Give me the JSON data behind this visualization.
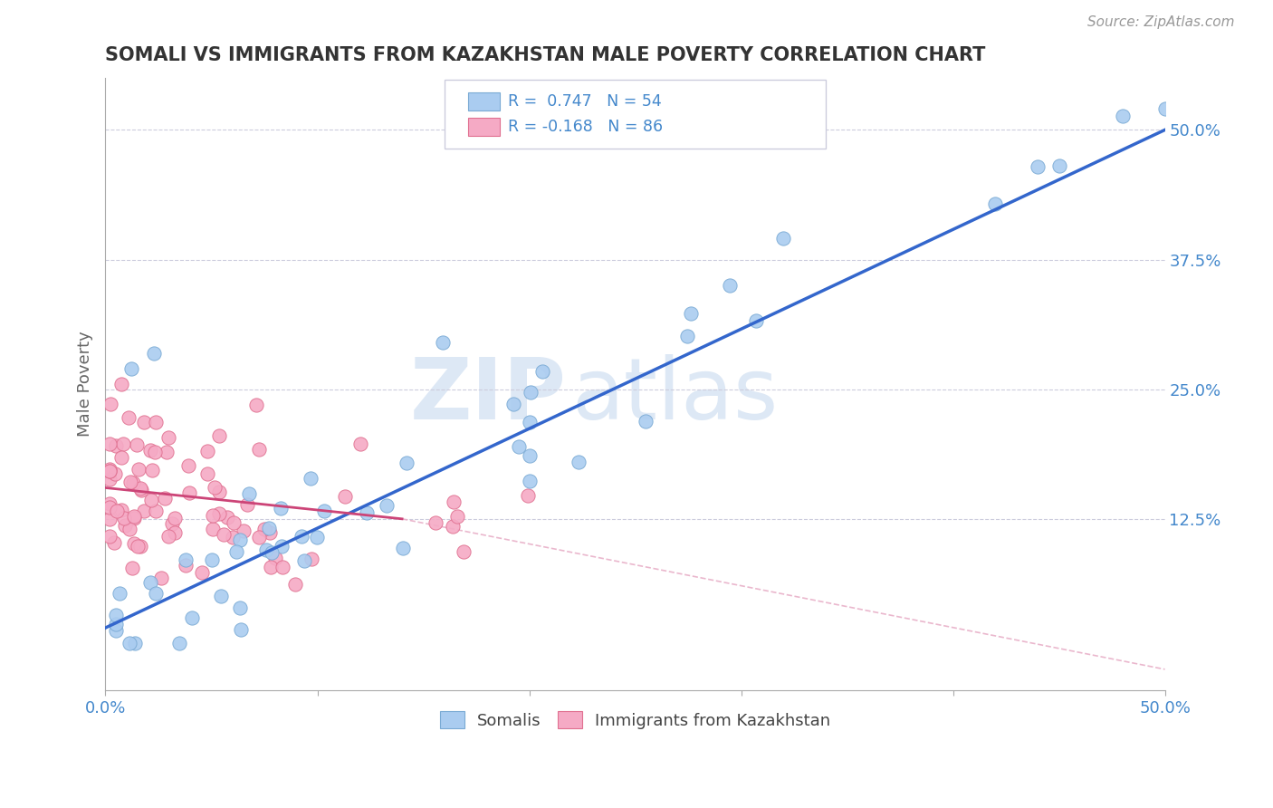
{
  "title": "SOMALI VS IMMIGRANTS FROM KAZAKHSTAN MALE POVERTY CORRELATION CHART",
  "source": "Source: ZipAtlas.com",
  "ylabel": "Male Poverty",
  "r_somali": 0.747,
  "n_somali": 54,
  "r_kazakhstan": -0.168,
  "n_kazakhstan": 86,
  "y_tick_labels": [
    "12.5%",
    "25.0%",
    "37.5%",
    "50.0%"
  ],
  "y_tick_values": [
    0.125,
    0.25,
    0.375,
    0.5
  ],
  "x_tick_values": [
    0.0,
    0.1,
    0.2,
    0.3,
    0.4,
    0.5
  ],
  "xmin": 0.0,
  "xmax": 0.5,
  "ymin": -0.04,
  "ymax": 0.55,
  "somali_color": "#aaccf0",
  "somali_edge": "#7aaad4",
  "kazakhstan_color": "#f5aac5",
  "kazakhstan_edge": "#e07090",
  "trendline_somali": "#3366cc",
  "trendline_kazakhstan_solid": "#cc4477",
  "trendline_kazakhstan_dashed": "#e8b0c8",
  "watermark_color": "#dde8f5",
  "background": "#ffffff",
  "grid_color": "#ccccdd",
  "legend_edge": "#ccccdd",
  "axis_label_color": "#4488cc",
  "title_color": "#333333",
  "source_color": "#999999"
}
